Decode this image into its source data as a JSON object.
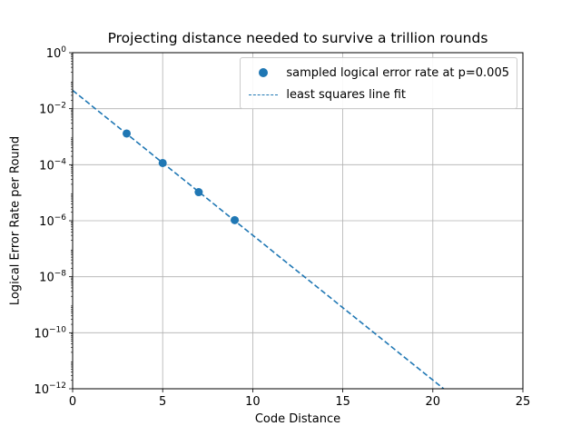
{
  "chart_data": {
    "type": "scatter",
    "title": "Projecting distance needed to survive a trillion rounds",
    "xlabel": "Code Distance",
    "ylabel": "Logical Error Rate per Round",
    "xlim": [
      0,
      25
    ],
    "ylim": [
      1e-12,
      1
    ],
    "yscale": "log",
    "grid": true,
    "legend_position": "top-right",
    "x_ticks": [
      "0",
      "5",
      "10",
      "15",
      "20",
      "25"
    ],
    "y_ticks": [
      {
        "base": "10",
        "exp": "−12",
        "value": 1e-12
      },
      {
        "base": "10",
        "exp": "−10",
        "value": 1e-10
      },
      {
        "base": "10",
        "exp": "−8",
        "value": 1e-08
      },
      {
        "base": "10",
        "exp": "−6",
        "value": 1e-06
      },
      {
        "base": "10",
        "exp": "−4",
        "value": 0.0001
      },
      {
        "base": "10",
        "exp": "−2",
        "value": 0.01
      },
      {
        "base": "10",
        "exp": "0",
        "value": 1
      }
    ],
    "series": [
      {
        "name": "sampled logical error rate at p=0.005",
        "kind": "scatter",
        "color": "#1f77b4",
        "x": [
          3,
          5,
          7,
          9
        ],
        "y": [
          0.0013,
          0.000115,
          1.05e-05,
          1.05e-06
        ]
      },
      {
        "name": "least squares line fit",
        "kind": "line",
        "style": "dashed",
        "color": "#1f77b4",
        "x": [
          0,
          20.6
        ],
        "y": [
          0.045,
          1e-12
        ]
      }
    ]
  }
}
